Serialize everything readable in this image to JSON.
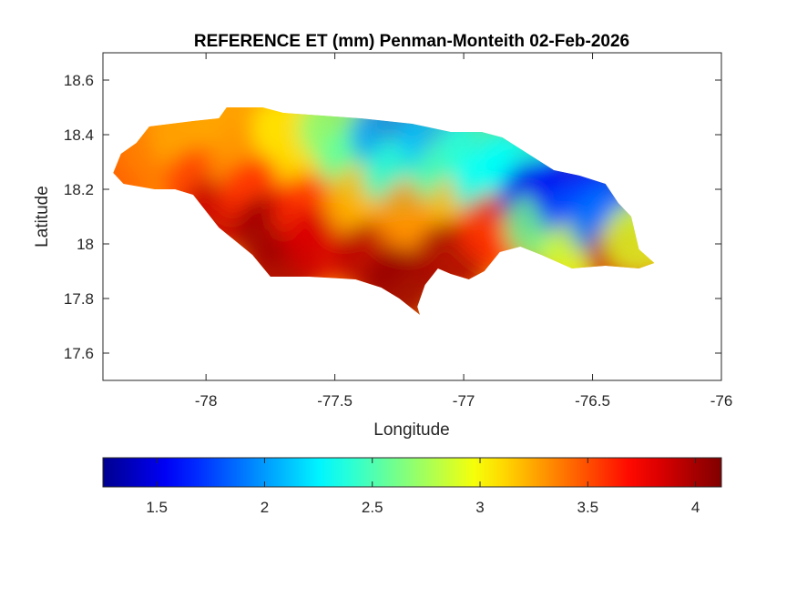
{
  "chart_data": {
    "type": "heatmap",
    "title": "REFERENCE ET (mm) Penman-Monteith 02-Feb-2026",
    "xlabel": "Longitude",
    "ylabel": "Latitude",
    "xlim": [
      -78.4,
      -76
    ],
    "ylim": [
      17.5,
      18.7
    ],
    "xticks": [
      -78,
      -77.5,
      -77,
      -76.5,
      -76
    ],
    "yticks": [
      17.6,
      17.8,
      18,
      18.2,
      18.4,
      18.6
    ],
    "xtick_labels": [
      "-78",
      "-77.5",
      "-77",
      "-76.5",
      "-76"
    ],
    "ytick_labels": [
      "17.6",
      "17.8",
      "18",
      "18.2",
      "18.4",
      "18.6"
    ],
    "grid": false,
    "colormap": "jet",
    "colorbar": {
      "orientation": "horizontal",
      "placement": "bottom",
      "range": [
        1.25,
        4.12
      ],
      "ticks": [
        1.5,
        2,
        2.5,
        3,
        3.5,
        4
      ],
      "tick_labels": [
        "1.5",
        "2",
        "2.5",
        "3",
        "3.5",
        "4"
      ],
      "stops": [
        "#00008f",
        "#0000ff",
        "#00ffff",
        "#ffff00",
        "#ff0000",
        "#800000"
      ]
    },
    "outline": [
      [
        -78.36,
        18.26
      ],
      [
        -78.33,
        18.33
      ],
      [
        -78.27,
        18.37
      ],
      [
        -78.22,
        18.43
      ],
      [
        -78.05,
        18.45
      ],
      [
        -77.95,
        18.46
      ],
      [
        -77.92,
        18.5
      ],
      [
        -77.78,
        18.5
      ],
      [
        -77.7,
        18.48
      ],
      [
        -77.55,
        18.47
      ],
      [
        -77.4,
        18.46
      ],
      [
        -77.2,
        18.44
      ],
      [
        -77.05,
        18.41
      ],
      [
        -76.93,
        18.41
      ],
      [
        -76.85,
        18.39
      ],
      [
        -76.75,
        18.33
      ],
      [
        -76.65,
        18.27
      ],
      [
        -76.55,
        18.25
      ],
      [
        -76.45,
        18.22
      ],
      [
        -76.4,
        18.15
      ],
      [
        -76.35,
        18.1
      ],
      [
        -76.32,
        17.98
      ],
      [
        -76.26,
        17.93
      ],
      [
        -76.32,
        17.91
      ],
      [
        -76.45,
        17.92
      ],
      [
        -76.58,
        17.91
      ],
      [
        -76.7,
        17.96
      ],
      [
        -76.78,
        17.99
      ],
      [
        -76.86,
        17.97
      ],
      [
        -76.92,
        17.9
      ],
      [
        -76.98,
        17.87
      ],
      [
        -77.05,
        17.89
      ],
      [
        -77.1,
        17.91
      ],
      [
        -77.15,
        17.85
      ],
      [
        -77.18,
        17.77
      ],
      [
        -77.17,
        17.74
      ],
      [
        -77.25,
        17.8
      ],
      [
        -77.32,
        17.84
      ],
      [
        -77.42,
        17.87
      ],
      [
        -77.6,
        17.88
      ],
      [
        -77.75,
        17.88
      ],
      [
        -77.82,
        17.96
      ],
      [
        -77.95,
        18.06
      ],
      [
        -78.05,
        18.18
      ],
      [
        -78.12,
        18.2
      ],
      [
        -78.2,
        18.2
      ],
      [
        -78.32,
        18.22
      ]
    ],
    "field_samples": [
      {
        "lon": -78.32,
        "lat": 18.3,
        "value": 3.45
      },
      {
        "lon": -78.2,
        "lat": 18.36,
        "value": 3.35
      },
      {
        "lon": -78.08,
        "lat": 18.4,
        "value": 3.25
      },
      {
        "lon": -78.0,
        "lat": 18.3,
        "value": 3.25
      },
      {
        "lon": -78.02,
        "lat": 18.22,
        "value": 3.55
      },
      {
        "lon": -77.95,
        "lat": 18.12,
        "value": 3.9
      },
      {
        "lon": -77.88,
        "lat": 18.44,
        "value": 3.25
      },
      {
        "lon": -77.85,
        "lat": 18.3,
        "value": 3.3
      },
      {
        "lon": -77.8,
        "lat": 18.18,
        "value": 3.6
      },
      {
        "lon": -77.75,
        "lat": 18.05,
        "value": 4.05
      },
      {
        "lon": -77.7,
        "lat": 17.92,
        "value": 4.0
      },
      {
        "lon": -77.68,
        "lat": 18.42,
        "value": 3.05
      },
      {
        "lon": -77.6,
        "lat": 18.3,
        "value": 3.1
      },
      {
        "lon": -77.6,
        "lat": 18.12,
        "value": 3.6
      },
      {
        "lon": -77.55,
        "lat": 18.0,
        "value": 3.85
      },
      {
        "lon": -77.5,
        "lat": 18.42,
        "value": 2.65
      },
      {
        "lon": -77.42,
        "lat": 18.3,
        "value": 2.55
      },
      {
        "lon": -77.4,
        "lat": 18.15,
        "value": 3.2
      },
      {
        "lon": -77.35,
        "lat": 17.95,
        "value": 3.95
      },
      {
        "lon": -77.3,
        "lat": 18.4,
        "value": 2.0
      },
      {
        "lon": -77.25,
        "lat": 18.25,
        "value": 2.4
      },
      {
        "lon": -77.2,
        "lat": 18.1,
        "value": 3.3
      },
      {
        "lon": -77.25,
        "lat": 17.85,
        "value": 4.05
      },
      {
        "lon": -77.1,
        "lat": 18.38,
        "value": 2.1
      },
      {
        "lon": -77.05,
        "lat": 18.25,
        "value": 2.5
      },
      {
        "lon": -77.0,
        "lat": 18.12,
        "value": 3.2
      },
      {
        "lon": -77.05,
        "lat": 17.95,
        "value": 4.0
      },
      {
        "lon": -76.95,
        "lat": 18.35,
        "value": 2.4
      },
      {
        "lon": -76.9,
        "lat": 18.22,
        "value": 2.3
      },
      {
        "lon": -76.88,
        "lat": 18.05,
        "value": 3.6
      },
      {
        "lon": -76.78,
        "lat": 18.3,
        "value": 2.3
      },
      {
        "lon": -76.72,
        "lat": 18.17,
        "value": 1.5
      },
      {
        "lon": -76.7,
        "lat": 18.06,
        "value": 2.6
      },
      {
        "lon": -76.6,
        "lat": 18.2,
        "value": 1.55
      },
      {
        "lon": -76.55,
        "lat": 18.1,
        "value": 1.8
      },
      {
        "lon": -76.55,
        "lat": 17.96,
        "value": 2.9
      },
      {
        "lon": -76.45,
        "lat": 18.18,
        "value": 1.7
      },
      {
        "lon": -76.45,
        "lat": 18.08,
        "value": 1.9
      },
      {
        "lon": -76.38,
        "lat": 17.94,
        "value": 3.85
      },
      {
        "lon": -76.32,
        "lat": 18.02,
        "value": 2.9
      }
    ]
  }
}
